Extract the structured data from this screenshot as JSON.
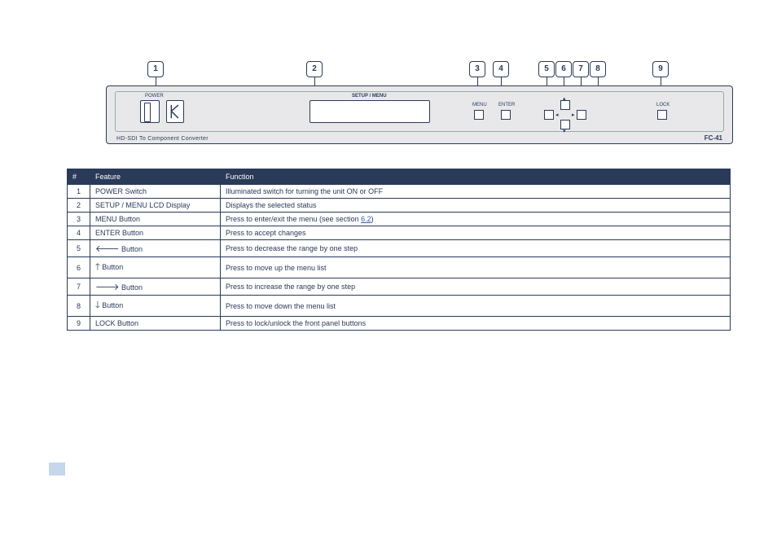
{
  "callouts": [
    "1",
    "2",
    "3",
    "4",
    "5",
    "6",
    "7",
    "8",
    "9"
  ],
  "device": {
    "power_label": "POWER",
    "lcd_label": "SETUP / MENU",
    "bottom_left": "HD-SDI To Component Converter",
    "bottom_right": "FC-41",
    "btn_menu": "MENU",
    "btn_enter": "ENTER",
    "btn_lock": "LOCK"
  },
  "table": {
    "headers": [
      "#",
      "Feature",
      "Function"
    ],
    "rows": [
      {
        "n": "1",
        "feat": "POWER Switch",
        "fn": "Illuminated switch for turning the unit ON or OFF"
      },
      {
        "n": "2",
        "feat": "SETUP / MENU LCD Display",
        "fn": "Displays the selected status"
      },
      {
        "n": "3",
        "feat": "MENU Button",
        "fn_pre": "Press to enter/exit the menu (see section ",
        "fn_link": "6.2",
        "fn_post": ")"
      },
      {
        "n": "4",
        "feat": "ENTER Button",
        "fn": "Press to accept changes"
      },
      {
        "n": "5",
        "feat": "◄ Button",
        "fn": "Press to decrease the range by one step"
      },
      {
        "n": "6",
        "feat": "▲ Button",
        "fn": "Press to move up the menu list"
      },
      {
        "n": "7",
        "feat": "► Button",
        "fn": "Press to increase the range by one step"
      },
      {
        "n": "8",
        "feat": "▼ Button",
        "fn": "Press to move down the menu list"
      },
      {
        "n": "9",
        "feat": "LOCK Button",
        "fn": "Press to lock/unlock the front panel buttons"
      }
    ]
  },
  "style": {
    "panel_bg": "#e8e8ea",
    "line_color": "#2a3a59",
    "header_bg": "#2a3a59",
    "link_color": "#3a5aa8",
    "page_box_bg": "#c6d6ec"
  }
}
